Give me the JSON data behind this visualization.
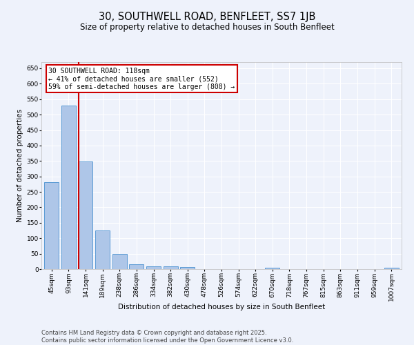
{
  "title": "30, SOUTHWELL ROAD, BENFLEET, SS7 1JB",
  "subtitle": "Size of property relative to detached houses in South Benfleet",
  "xlabel": "Distribution of detached houses by size in South Benfleet",
  "ylabel": "Number of detached properties",
  "categories": [
    "45sqm",
    "93sqm",
    "141sqm",
    "189sqm",
    "238sqm",
    "286sqm",
    "334sqm",
    "382sqm",
    "430sqm",
    "478sqm",
    "526sqm",
    "574sqm",
    "622sqm",
    "670sqm",
    "718sqm",
    "767sqm",
    "815sqm",
    "863sqm",
    "911sqm",
    "959sqm",
    "1007sqm"
  ],
  "values": [
    282,
    530,
    348,
    125,
    50,
    16,
    10,
    10,
    7,
    0,
    0,
    0,
    0,
    5,
    0,
    0,
    0,
    0,
    0,
    0,
    5
  ],
  "bar_color": "#aec6e8",
  "bar_edge_color": "#5b9bd5",
  "ylim": [
    0,
    670
  ],
  "yticks": [
    0,
    50,
    100,
    150,
    200,
    250,
    300,
    350,
    400,
    450,
    500,
    550,
    600,
    650
  ],
  "property_line_x": 1.58,
  "annotation_text": "30 SOUTHWELL ROAD: 118sqm\n← 41% of detached houses are smaller (552)\n59% of semi-detached houses are larger (808) →",
  "annotation_box_color": "#ffffff",
  "annotation_box_edge": "#cc0000",
  "red_line_color": "#cc0000",
  "footer_text": "Contains HM Land Registry data © Crown copyright and database right 2025.\nContains public sector information licensed under the Open Government Licence v3.0.",
  "background_color": "#eef2fb",
  "grid_color": "#ffffff",
  "title_fontsize": 10.5,
  "subtitle_fontsize": 8.5,
  "axis_label_fontsize": 7.5,
  "tick_fontsize": 6.5,
  "annotation_fontsize": 7,
  "footer_fontsize": 6
}
